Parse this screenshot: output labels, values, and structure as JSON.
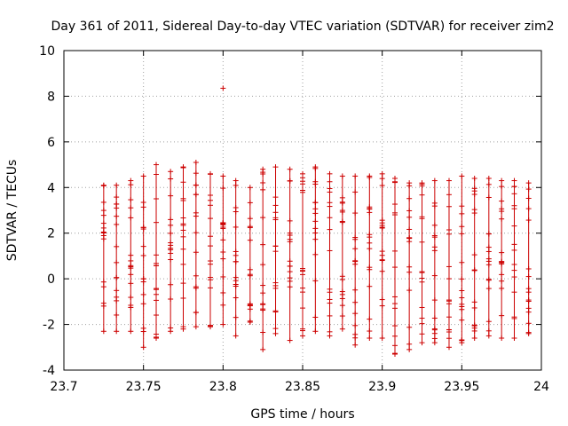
{
  "chart_data": {
    "type": "scatter",
    "title": "Day 361 of 2011, Sidereal Day-to-day VTEC variation (SDTVAR) for receiver zim2",
    "xlabel": "GPS time / hours",
    "ylabel": "SDTVAR / TECUs",
    "xlim": [
      23.7,
      24
    ],
    "ylim": [
      -4,
      10
    ],
    "xticks": [
      "23.7",
      "23.75",
      "23.8",
      "23.85",
      "23.9",
      "23.95",
      "24"
    ],
    "yticks": [
      "-4",
      "-2",
      "0",
      "2",
      "4",
      "6",
      "8",
      "10"
    ],
    "grid": true,
    "marker": "plus",
    "color": "#cc0000",
    "x": [
      23.725,
      23.733,
      23.742,
      23.75,
      23.758,
      23.767,
      23.775,
      23.783,
      23.792,
      23.8,
      23.808,
      23.817,
      23.825,
      23.833,
      23.842,
      23.85,
      23.858,
      23.867,
      23.875,
      23.883,
      23.892,
      23.9,
      23.908,
      23.917,
      23.925,
      23.933,
      23.942,
      23.95,
      23.958,
      23.967,
      23.975,
      23.983,
      23.992
    ],
    "min": [
      -2.3,
      -2.3,
      -2.3,
      -3.0,
      -2.6,
      -2.3,
      -2.2,
      -2.1,
      -2.1,
      -2.0,
      -2.5,
      -1.9,
      -3.1,
      -2.4,
      -2.7,
      -2.5,
      -2.3,
      -2.5,
      -2.2,
      -2.9,
      -2.6,
      -2.6,
      -3.3,
      -3.1,
      -2.8,
      -2.8,
      -3.0,
      -2.8,
      -2.6,
      -2.5,
      -2.6,
      -2.6,
      -2.4
    ],
    "max": [
      4.1,
      4.1,
      4.3,
      4.5,
      5.0,
      4.7,
      4.9,
      5.1,
      4.6,
      4.5,
      4.3,
      4.0,
      4.8,
      4.9,
      4.8,
      4.6,
      4.9,
      4.6,
      4.5,
      4.5,
      4.5,
      4.6,
      4.4,
      4.2,
      4.2,
      4.3,
      4.3,
      4.5,
      4.4,
      4.4,
      4.3,
      4.3,
      4.2
    ],
    "outliers": [
      {
        "x": 23.8,
        "y": 8.35
      }
    ]
  }
}
